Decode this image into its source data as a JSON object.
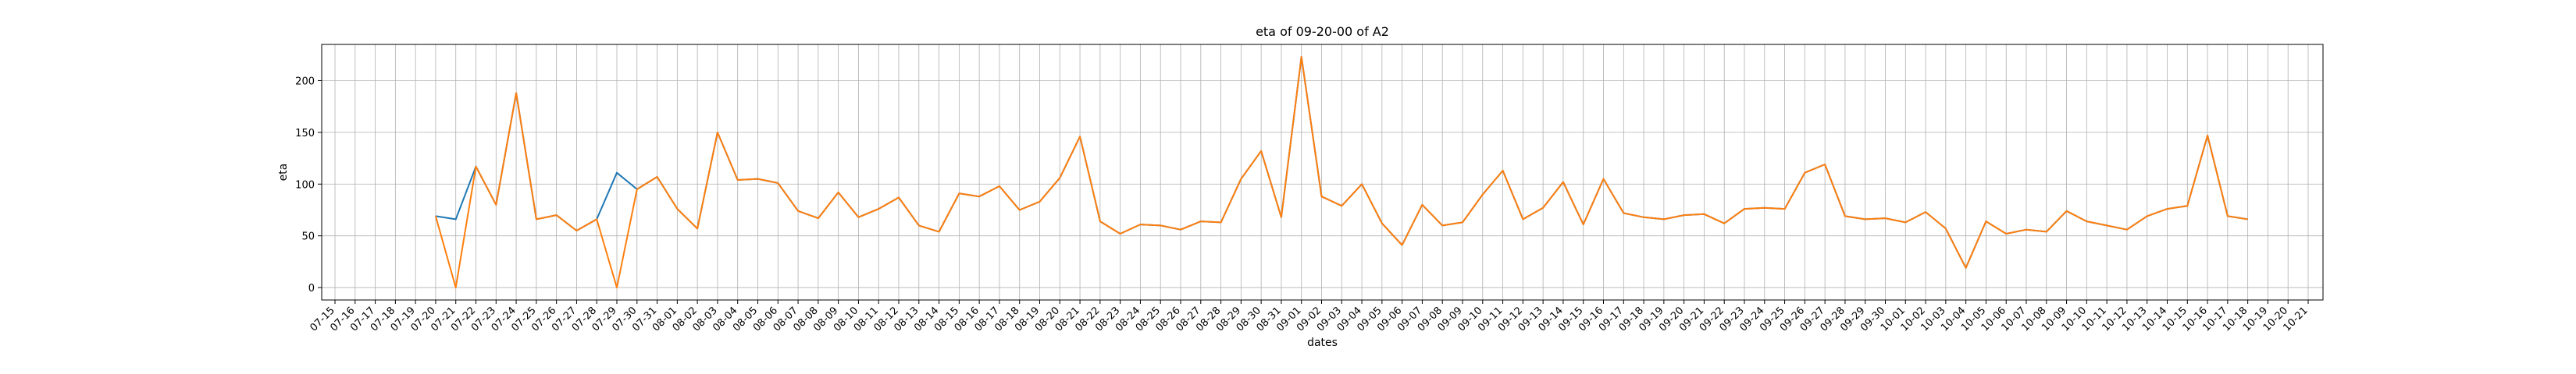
{
  "chart_data": {
    "type": "line",
    "title": "eta of 09-20-00 of A2",
    "xlabel": "dates",
    "ylabel": "eta",
    "grid": true,
    "legend": "none",
    "x_ticks": [
      "07-15",
      "07-16",
      "07-17",
      "07-18",
      "07-19",
      "07-20",
      "07-21",
      "07-22",
      "07-23",
      "07-24",
      "07-25",
      "07-26",
      "07-27",
      "07-28",
      "07-29",
      "07-30",
      "07-31",
      "08-01",
      "08-02",
      "08-03",
      "08-04",
      "08-05",
      "08-06",
      "08-07",
      "08-08",
      "08-09",
      "08-10",
      "08-11",
      "08-12",
      "08-13",
      "08-14",
      "08-15",
      "08-16",
      "08-17",
      "08-18",
      "08-19",
      "08-20",
      "08-21",
      "08-22",
      "08-23",
      "08-24",
      "08-25",
      "08-26",
      "08-27",
      "08-28",
      "08-29",
      "08-30",
      "08-31",
      "09-01",
      "09-02",
      "09-03",
      "09-04",
      "09-05",
      "09-06",
      "09-07",
      "09-08",
      "09-09",
      "09-10",
      "09-11",
      "09-12",
      "09-13",
      "09-14",
      "09-15",
      "09-16",
      "09-17",
      "09-18",
      "09-19",
      "09-20",
      "09-21",
      "09-22",
      "09-23",
      "09-24",
      "09-25",
      "09-26",
      "09-27",
      "09-28",
      "09-29",
      "09-30",
      "10-01",
      "10-02",
      "10-03",
      "10-04",
      "10-05",
      "10-06",
      "10-07",
      "10-08",
      "10-09",
      "10-10",
      "10-11",
      "10-12",
      "10-13",
      "10-14",
      "10-15",
      "10-16",
      "10-17",
      "10-18",
      "10-19",
      "10-20",
      "10-21"
    ],
    "y_ticks": [
      0,
      50,
      100,
      150,
      200
    ],
    "ylim": [
      -12,
      235
    ],
    "series": [
      {
        "color": "#1f77b4",
        "x": [
          "07-20",
          "07-21",
          "07-22",
          "07-23",
          "07-24",
          "07-25",
          "07-26",
          "07-27",
          "07-28",
          "07-29",
          "07-30",
          "07-31",
          "08-01",
          "08-02",
          "08-03",
          "08-04",
          "08-05",
          "08-06",
          "08-07",
          "08-08",
          "08-09",
          "08-10",
          "08-11",
          "08-12",
          "08-13",
          "08-14",
          "08-15",
          "08-16",
          "08-17",
          "08-18",
          "08-19",
          "08-20",
          "08-21",
          "08-22",
          "08-23",
          "08-24",
          "08-25",
          "08-26",
          "08-27",
          "08-28",
          "08-29",
          "08-30",
          "08-31",
          "09-01",
          "09-02",
          "09-03",
          "09-04",
          "09-05",
          "09-06",
          "09-07",
          "09-08",
          "09-09",
          "09-10",
          "09-11",
          "09-12",
          "09-13",
          "09-14",
          "09-15",
          "09-16",
          "09-17",
          "09-18",
          "09-19",
          "09-20",
          "09-21",
          "09-22",
          "09-23",
          "09-24",
          "09-25",
          "09-26",
          "09-27",
          "09-28",
          "09-29",
          "09-30",
          "10-01",
          "10-02",
          "10-03",
          "10-04",
          "10-05",
          "10-06",
          "10-07",
          "10-08",
          "10-09",
          "10-10",
          "10-11",
          "10-12",
          "10-13",
          "10-14",
          "10-15",
          "10-16",
          "10-17",
          "10-18"
        ],
        "values": [
          69,
          66,
          117,
          80,
          188,
          66,
          70,
          55,
          66,
          111,
          95,
          107,
          76,
          57,
          150,
          104,
          105,
          101,
          74,
          67,
          92,
          68,
          76,
          87,
          60,
          54,
          91,
          88,
          98,
          75,
          83,
          106,
          146,
          64,
          52,
          61,
          60,
          56,
          64,
          63,
          105,
          132,
          68,
          223,
          88,
          79,
          100,
          62,
          41,
          80,
          60,
          63,
          90,
          113,
          66,
          77,
          102,
          61,
          105,
          72,
          68,
          66,
          70,
          71,
          62,
          76,
          77,
          76,
          111,
          119,
          69,
          66,
          67,
          63,
          73,
          57,
          19,
          64,
          52,
          56,
          54,
          74,
          64,
          60,
          56,
          69,
          76,
          79,
          147,
          69,
          66
        ]
      },
      {
        "color": "#ff7f0e",
        "x": [
          "07-20",
          "07-21",
          "07-22",
          "07-23",
          "07-24",
          "07-25",
          "07-26",
          "07-27",
          "07-28",
          "07-29",
          "07-30",
          "07-31",
          "08-01",
          "08-02",
          "08-03",
          "08-04",
          "08-05",
          "08-06",
          "08-07",
          "08-08",
          "08-09",
          "08-10",
          "08-11",
          "08-12",
          "08-13",
          "08-14",
          "08-15",
          "08-16",
          "08-17",
          "08-18",
          "08-19",
          "08-20",
          "08-21",
          "08-22",
          "08-23",
          "08-24",
          "08-25",
          "08-26",
          "08-27",
          "08-28",
          "08-29",
          "08-30",
          "08-31",
          "09-01",
          "09-02",
          "09-03",
          "09-04",
          "09-05",
          "09-06",
          "09-07",
          "09-08",
          "09-09",
          "09-10",
          "09-11",
          "09-12",
          "09-13",
          "09-14",
          "09-15",
          "09-16",
          "09-17",
          "09-18",
          "09-19",
          "09-20",
          "09-21",
          "09-22",
          "09-23",
          "09-24",
          "09-25",
          "09-26",
          "09-27",
          "09-28",
          "09-29",
          "09-30",
          "10-01",
          "10-02",
          "10-03",
          "10-04",
          "10-05",
          "10-06",
          "10-07",
          "10-08",
          "10-09",
          "10-10",
          "10-11",
          "10-12",
          "10-13",
          "10-14",
          "10-15",
          "10-16",
          "10-17",
          "10-18"
        ],
        "values": [
          69,
          0,
          117,
          80,
          188,
          66,
          70,
          55,
          66,
          0,
          95,
          107,
          76,
          57,
          150,
          104,
          105,
          101,
          74,
          67,
          92,
          68,
          76,
          87,
          60,
          54,
          91,
          88,
          98,
          75,
          83,
          106,
          146,
          64,
          52,
          61,
          60,
          56,
          64,
          63,
          105,
          132,
          68,
          223,
          88,
          79,
          100,
          62,
          41,
          80,
          60,
          63,
          90,
          113,
          66,
          77,
          102,
          61,
          105,
          72,
          68,
          66,
          70,
          71,
          62,
          76,
          77,
          76,
          111,
          119,
          69,
          66,
          67,
          63,
          73,
          57,
          19,
          64,
          52,
          56,
          54,
          74,
          64,
          60,
          56,
          69,
          76,
          79,
          147,
          69,
          66
        ]
      }
    ]
  }
}
